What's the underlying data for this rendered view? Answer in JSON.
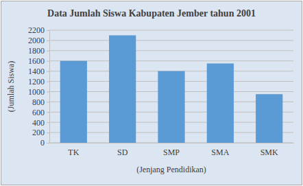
{
  "chart_data": {
    "type": "bar",
    "title": "Data Jumlah Siswa Kabupaten Jember tahun 2001",
    "x_label": "(Jenjang Pendidikan)",
    "y_label": "(Jumlah Siswa)",
    "categories": [
      "TK",
      "SD",
      "SMP",
      "SMA",
      "SMK"
    ],
    "values": [
      1600,
      2100,
      1400,
      1550,
      950
    ],
    "color": "#5b9bd5",
    "ylim": [
      0,
      2200
    ],
    "yticks": [
      0,
      200,
      400,
      600,
      800,
      1000,
      1200,
      1400,
      1600,
      1800,
      2000,
      2200
    ],
    "grid": true
  }
}
